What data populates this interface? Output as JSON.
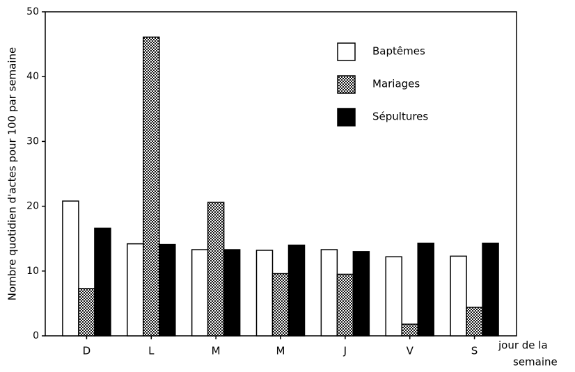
{
  "chart_data": {
    "type": "bar",
    "y_label": "Nombre quotidien d'actes pour 100 par semaine",
    "x_label": [
      "jour de la",
      "semaine"
    ],
    "categories": [
      "D",
      "L",
      "M",
      "M",
      "J",
      "V",
      "S"
    ],
    "series": [
      {
        "name": "Baptêmes",
        "color": "#ffffff",
        "values": [
          20.8,
          14.2,
          13.3,
          13.2,
          13.3,
          12.2,
          12.3
        ]
      },
      {
        "name": "Mariages",
        "color": "#888888",
        "pattern": "dots",
        "values": [
          7.3,
          46.1,
          20.6,
          9.6,
          9.5,
          1.8,
          4.4
        ]
      },
      {
        "name": "Sépultures",
        "color": "#000000",
        "values": [
          16.6,
          14.1,
          13.3,
          14.0,
          13.0,
          14.3,
          14.3
        ]
      }
    ],
    "ylim": [
      0,
      50
    ],
    "yticks": [
      0,
      10,
      20,
      30,
      40,
      50
    ],
    "grid": false,
    "legend": "top-right"
  }
}
